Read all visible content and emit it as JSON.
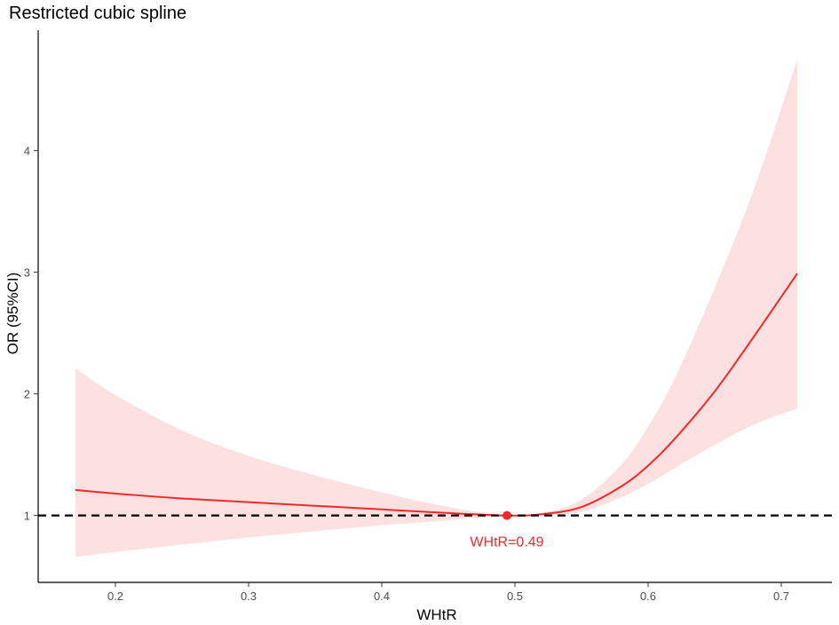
{
  "chart_data": {
    "type": "line",
    "title": "Restricted cubic spline",
    "xlabel": "WHtR",
    "ylabel": "OR (95%CI)",
    "xlim": [
      0.142,
      0.738
    ],
    "ylim": [
      0.45,
      4.99
    ],
    "x_ticks": [
      0.2,
      0.3,
      0.4,
      0.5,
      0.6,
      0.7
    ],
    "x_tick_labels": [
      "0.2",
      "0.3",
      "0.4",
      "0.5",
      "0.6",
      "0.7"
    ],
    "y_ticks": [
      1,
      2,
      3,
      4
    ],
    "y_tick_labels": [
      "1",
      "2",
      "3",
      "4"
    ],
    "grid": false,
    "reference_line": {
      "y": 1,
      "style": "dashed",
      "color": "#000000"
    },
    "series": [
      {
        "x": [
          0.17,
          0.2,
          0.25,
          0.3,
          0.35,
          0.4,
          0.45,
          0.494,
          0.52,
          0.55,
          0.58,
          0.6,
          0.62,
          0.65,
          0.68,
          0.712
        ],
        "y": [
          1.21,
          1.18,
          1.14,
          1.11,
          1.08,
          1.05,
          1.02,
          1.0,
          1.01,
          1.07,
          1.24,
          1.41,
          1.63,
          2.02,
          2.48,
          2.99
        ],
        "ci_lower": [
          0.66,
          0.7,
          0.76,
          0.82,
          0.87,
          0.92,
          0.96,
          1.0,
          1.0,
          1.03,
          1.15,
          1.26,
          1.39,
          1.58,
          1.75,
          1.88
        ],
        "ci_upper": [
          2.21,
          1.99,
          1.7,
          1.49,
          1.33,
          1.19,
          1.07,
          1.0,
          1.02,
          1.13,
          1.42,
          1.73,
          2.13,
          2.87,
          3.7,
          4.75
        ],
        "color": "#f0292b",
        "ci_color": "#fde0e0"
      }
    ],
    "annotation": {
      "x": 0.494,
      "y": 1.0,
      "label": "WHtR=0.49",
      "color": "#f0292b"
    }
  }
}
